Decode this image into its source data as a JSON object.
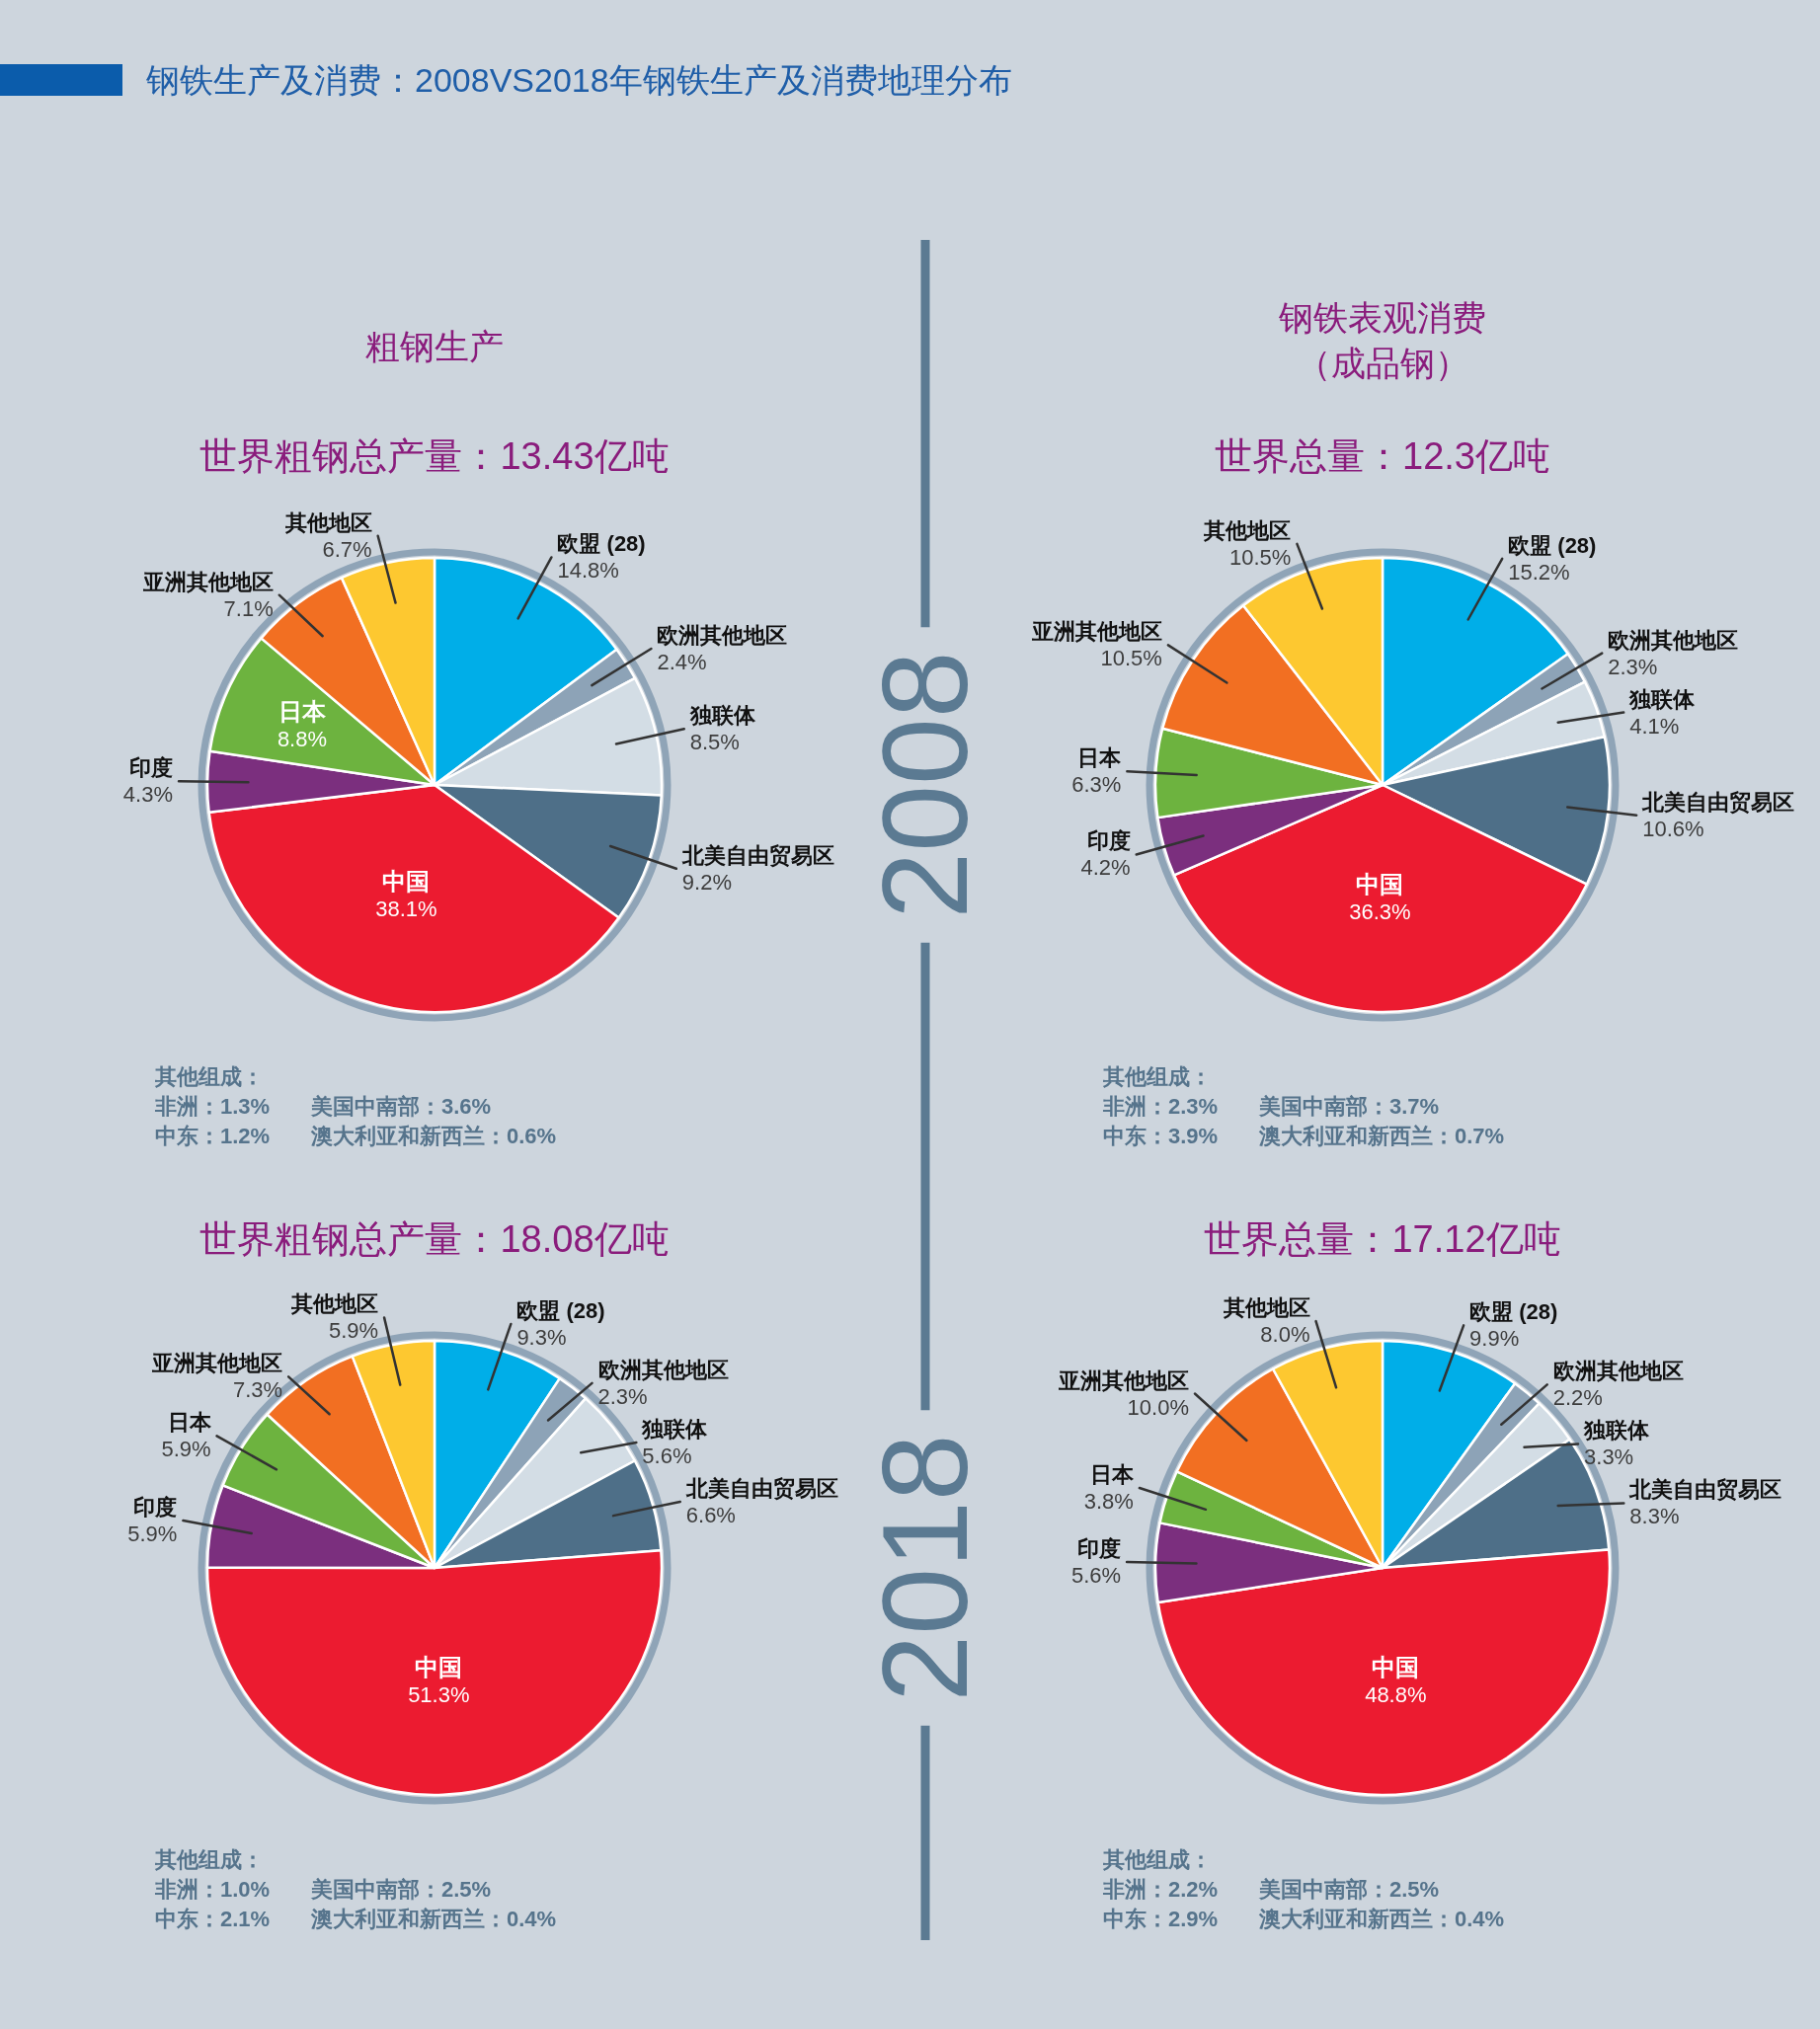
{
  "chart_data": [
    {
      "type": "other",
      "title": "钢铁生产及消费：2008VS2018年钢铁生产及消费地理分布",
      "annotations": [
        "2008",
        "2018"
      ]
    },
    {
      "type": "pie",
      "title": "粗钢生产",
      "subtitle": "世界粗钢总产量：13.43亿吨",
      "categories": [
        "欧盟 (28)",
        "欧洲其他地区",
        "独联体",
        "北美自由贸易区",
        "中国",
        "印度",
        "日本",
        "亚洲其他地区",
        "其他地区"
      ],
      "values": [
        14.8,
        2.4,
        8.5,
        9.2,
        38.1,
        4.3,
        8.8,
        7.1,
        6.7
      ],
      "value_labels": [
        "14.8%",
        "2.4%",
        "8.5%",
        "9.2%",
        "38.1%",
        "4.3%",
        "8.8%",
        "7.1%",
        "6.7%"
      ],
      "colors": [
        "#00aee8",
        "#8da3b7",
        "#d3dde5",
        "#4e6f88",
        "#ec1b30",
        "#7b2f7e",
        "#6db33f",
        "#f26f22",
        "#fdc830"
      ],
      "annotations": [
        "其他组成：",
        "非洲：1.3%",
        "美国中南部：3.6%",
        "中东：1.2%",
        "澳大利亚和新西兰：0.6%"
      ]
    },
    {
      "type": "pie",
      "title": "钢铁表观消费（成品钢）",
      "subtitle": "世界总量：12.3亿吨",
      "categories": [
        "欧盟 (28)",
        "欧洲其他地区",
        "独联体",
        "北美自由贸易区",
        "中国",
        "印度",
        "日本",
        "亚洲其他地区",
        "其他地区"
      ],
      "values": [
        15.2,
        2.3,
        4.1,
        10.6,
        36.3,
        4.2,
        6.3,
        10.5,
        10.5
      ],
      "value_labels": [
        "15.2%",
        "2.3%",
        "4.1%",
        "10.6%",
        "36.3%",
        "4.2%",
        "6.3%",
        "10.5%",
        "10.5%"
      ],
      "colors": [
        "#00aee8",
        "#8da3b7",
        "#d3dde5",
        "#4e6f88",
        "#ec1b30",
        "#7b2f7e",
        "#6db33f",
        "#f26f22",
        "#fdc830"
      ],
      "annotations": [
        "其他组成：",
        "非洲：2.3%",
        "美国中南部：3.7%",
        "中东：3.9%",
        "澳大利亚和新西兰：0.7%"
      ]
    },
    {
      "type": "pie",
      "title": "世界粗钢总产量：18.08亿吨",
      "categories": [
        "欧盟 (28)",
        "欧洲其他地区",
        "独联体",
        "北美自由贸易区",
        "中国",
        "印度",
        "日本",
        "亚洲其他地区",
        "其他地区"
      ],
      "values": [
        9.3,
        2.3,
        5.6,
        6.6,
        51.3,
        5.9,
        5.9,
        7.3,
        5.9
      ],
      "value_labels": [
        "9.3%",
        "2.3%",
        "5.6%",
        "6.6%",
        "51.3%",
        "5.9%",
        "5.9%",
        "7.3%",
        "5.9%"
      ],
      "colors": [
        "#00aee8",
        "#8da3b7",
        "#d3dde5",
        "#4e6f88",
        "#ec1b30",
        "#7b2f7e",
        "#6db33f",
        "#f26f22",
        "#fdc830"
      ],
      "annotations": [
        "其他组成：",
        "非洲：1.0%",
        "美国中南部：2.5%",
        "中东：2.1%",
        "澳大利亚和新西兰：0.4%"
      ]
    },
    {
      "type": "pie",
      "title": "世界总量：17.12亿吨",
      "categories": [
        "欧盟 (28)",
        "欧洲其他地区",
        "独联体",
        "北美自由贸易区",
        "中国",
        "印度",
        "日本",
        "亚洲其他地区",
        "其他地区"
      ],
      "values": [
        9.9,
        2.2,
        3.3,
        8.3,
        48.8,
        5.6,
        3.8,
        10.0,
        8.0
      ],
      "value_labels": [
        "9.9%",
        "2.2%",
        "3.3%",
        "8.3%",
        "48.8%",
        "5.6%",
        "3.8%",
        "10.0%",
        "8.0%"
      ],
      "colors": [
        "#00aee8",
        "#8da3b7",
        "#d3dde5",
        "#4e6f88",
        "#ec1b30",
        "#7b2f7e",
        "#6db33f",
        "#f26f22",
        "#fdc830"
      ],
      "annotations": [
        "其他组成：",
        "非洲：2.2%",
        "美国中南部：2.5%",
        "中东：2.9%",
        "澳大利亚和新西兰：0.4%"
      ]
    }
  ]
}
